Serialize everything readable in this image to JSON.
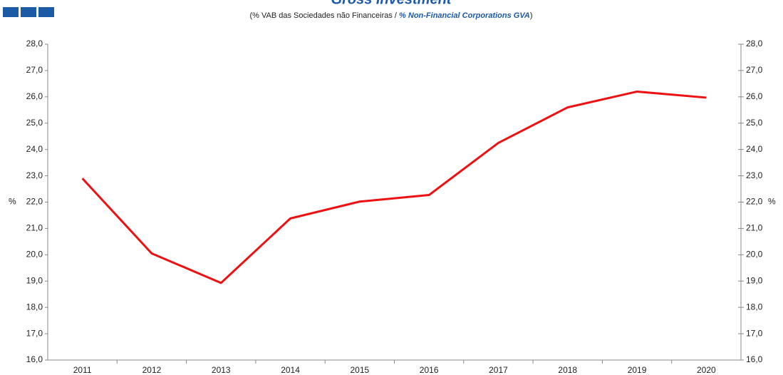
{
  "chart_data": {
    "type": "line",
    "title": "Gross Investment",
    "subtitle": [
      "(% VAB das Sociedades não Financeiras /",
      "% Non-Financial Corporations GVA",
      ")"
    ],
    "ylabel": "%",
    "y2label": "%",
    "categories": [
      "2011",
      "2012",
      "2013",
      "2014",
      "2015",
      "2016",
      "2017",
      "2018",
      "2019",
      "2020"
    ],
    "series": [
      {
        "color": "#ee1111",
        "values": [
          22.9,
          20.05,
          18.93,
          21.38,
          22.02,
          22.27,
          24.25,
          25.6,
          26.2,
          25.97
        ]
      }
    ],
    "ylim": [
      16,
      28
    ],
    "yticks": [
      {
        "value": 16,
        "label": "16,0"
      },
      {
        "value": 17,
        "label": "17,0"
      },
      {
        "value": 18,
        "label": "18,0"
      },
      {
        "value": 19,
        "label": "19,0"
      },
      {
        "value": 20,
        "label": "20,0"
      },
      {
        "value": 21,
        "label": "21,0"
      },
      {
        "value": 22,
        "label": "22,0"
      },
      {
        "value": 23,
        "label": "23,0"
      },
      {
        "value": 24,
        "label": "24,0"
      },
      {
        "value": 25,
        "label": "25,0"
      },
      {
        "value": 26,
        "label": "26,0"
      },
      {
        "value": 27,
        "label": "27,0"
      },
      {
        "value": 28,
        "label": "28,0"
      }
    ],
    "y2lim": [
      16,
      28
    ],
    "y2ticks": [
      {
        "value": 16,
        "label": "16,0"
      },
      {
        "value": 17,
        "label": "17,0"
      },
      {
        "value": 18,
        "label": "18,0"
      },
      {
        "value": 19,
        "label": "19,0"
      },
      {
        "value": 20,
        "label": "20,0"
      },
      {
        "value": 21,
        "label": "21,0"
      },
      {
        "value": 22,
        "label": "22,0"
      },
      {
        "value": 23,
        "label": "23,0"
      },
      {
        "value": 24,
        "label": "24,0"
      },
      {
        "value": 25,
        "label": "25,0"
      },
      {
        "value": 26,
        "label": "26,0"
      },
      {
        "value": 27,
        "label": "27,0"
      },
      {
        "value": 28,
        "label": "28,0"
      }
    ],
    "grid": false
  }
}
